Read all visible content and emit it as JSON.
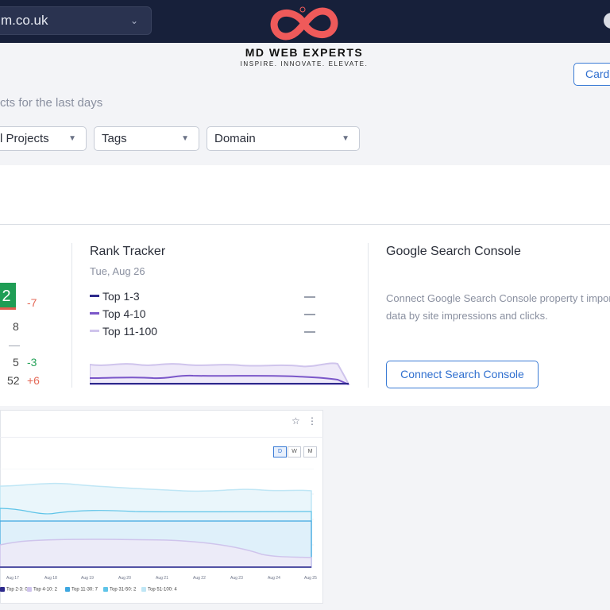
{
  "header": {
    "domain_value": "m.co.uk",
    "logo_name": "MD WEB EXPERTS",
    "logo_tagline": "INSPIRE. INNOVATE. ELEVATE.",
    "logo_color": "#ef5a5a"
  },
  "toolbar": {
    "card_button": "Card",
    "subtitle": "cts for the last days"
  },
  "filters": {
    "projects": "l Projects",
    "tags": "Tags",
    "domain": "Domain"
  },
  "stats": {
    "badge_value": "2",
    "badge_delta": "-7",
    "rows": [
      {
        "value": "8",
        "delta": ""
      },
      {
        "value": "—",
        "delta": ""
      },
      {
        "value": "5",
        "delta": "-3"
      },
      {
        "value": "52",
        "delta": "+6"
      }
    ]
  },
  "rank_tracker": {
    "title": "Rank Tracker",
    "date": "Tue, Aug 26",
    "legend": [
      {
        "label": "Top 1-3",
        "color": "#2d2a8c",
        "value": "—"
      },
      {
        "label": "Top 4-10",
        "color": "#7b57c9",
        "value": "—"
      },
      {
        "label": "Top 11-100",
        "color": "#cfc4ec",
        "value": "—"
      }
    ]
  },
  "gsc": {
    "title": "Google Search Console",
    "description": "Connect Google Search Console property t import data by site impressions and clicks.",
    "button": "Connect Search Console"
  },
  "chart_card": {
    "star_icon": "☆",
    "menu_icon": "⋮",
    "periods": [
      "D",
      "W",
      "M"
    ],
    "active_period": "D"
  },
  "chart_data": {
    "type": "area",
    "x": [
      "Aug 17",
      "Aug 18",
      "Aug 19",
      "Aug 20",
      "Aug 21",
      "Aug 22",
      "Aug 23",
      "Aug 24",
      "Aug 25"
    ],
    "series": [
      {
        "name": "Top 2-3: 0",
        "color": "#2d2a8c"
      },
      {
        "name": "Top 4-10: 2",
        "color": "#cfc4ec"
      },
      {
        "name": "Top 11-30: 7",
        "color": "#3ea7e0"
      },
      {
        "name": "Top 31-50: 2",
        "color": "#5fc4e8"
      },
      {
        "name": "Top 51-100: 4",
        "color": "#bfe6f5"
      }
    ],
    "grid": true,
    "legend_position": "bottom"
  }
}
